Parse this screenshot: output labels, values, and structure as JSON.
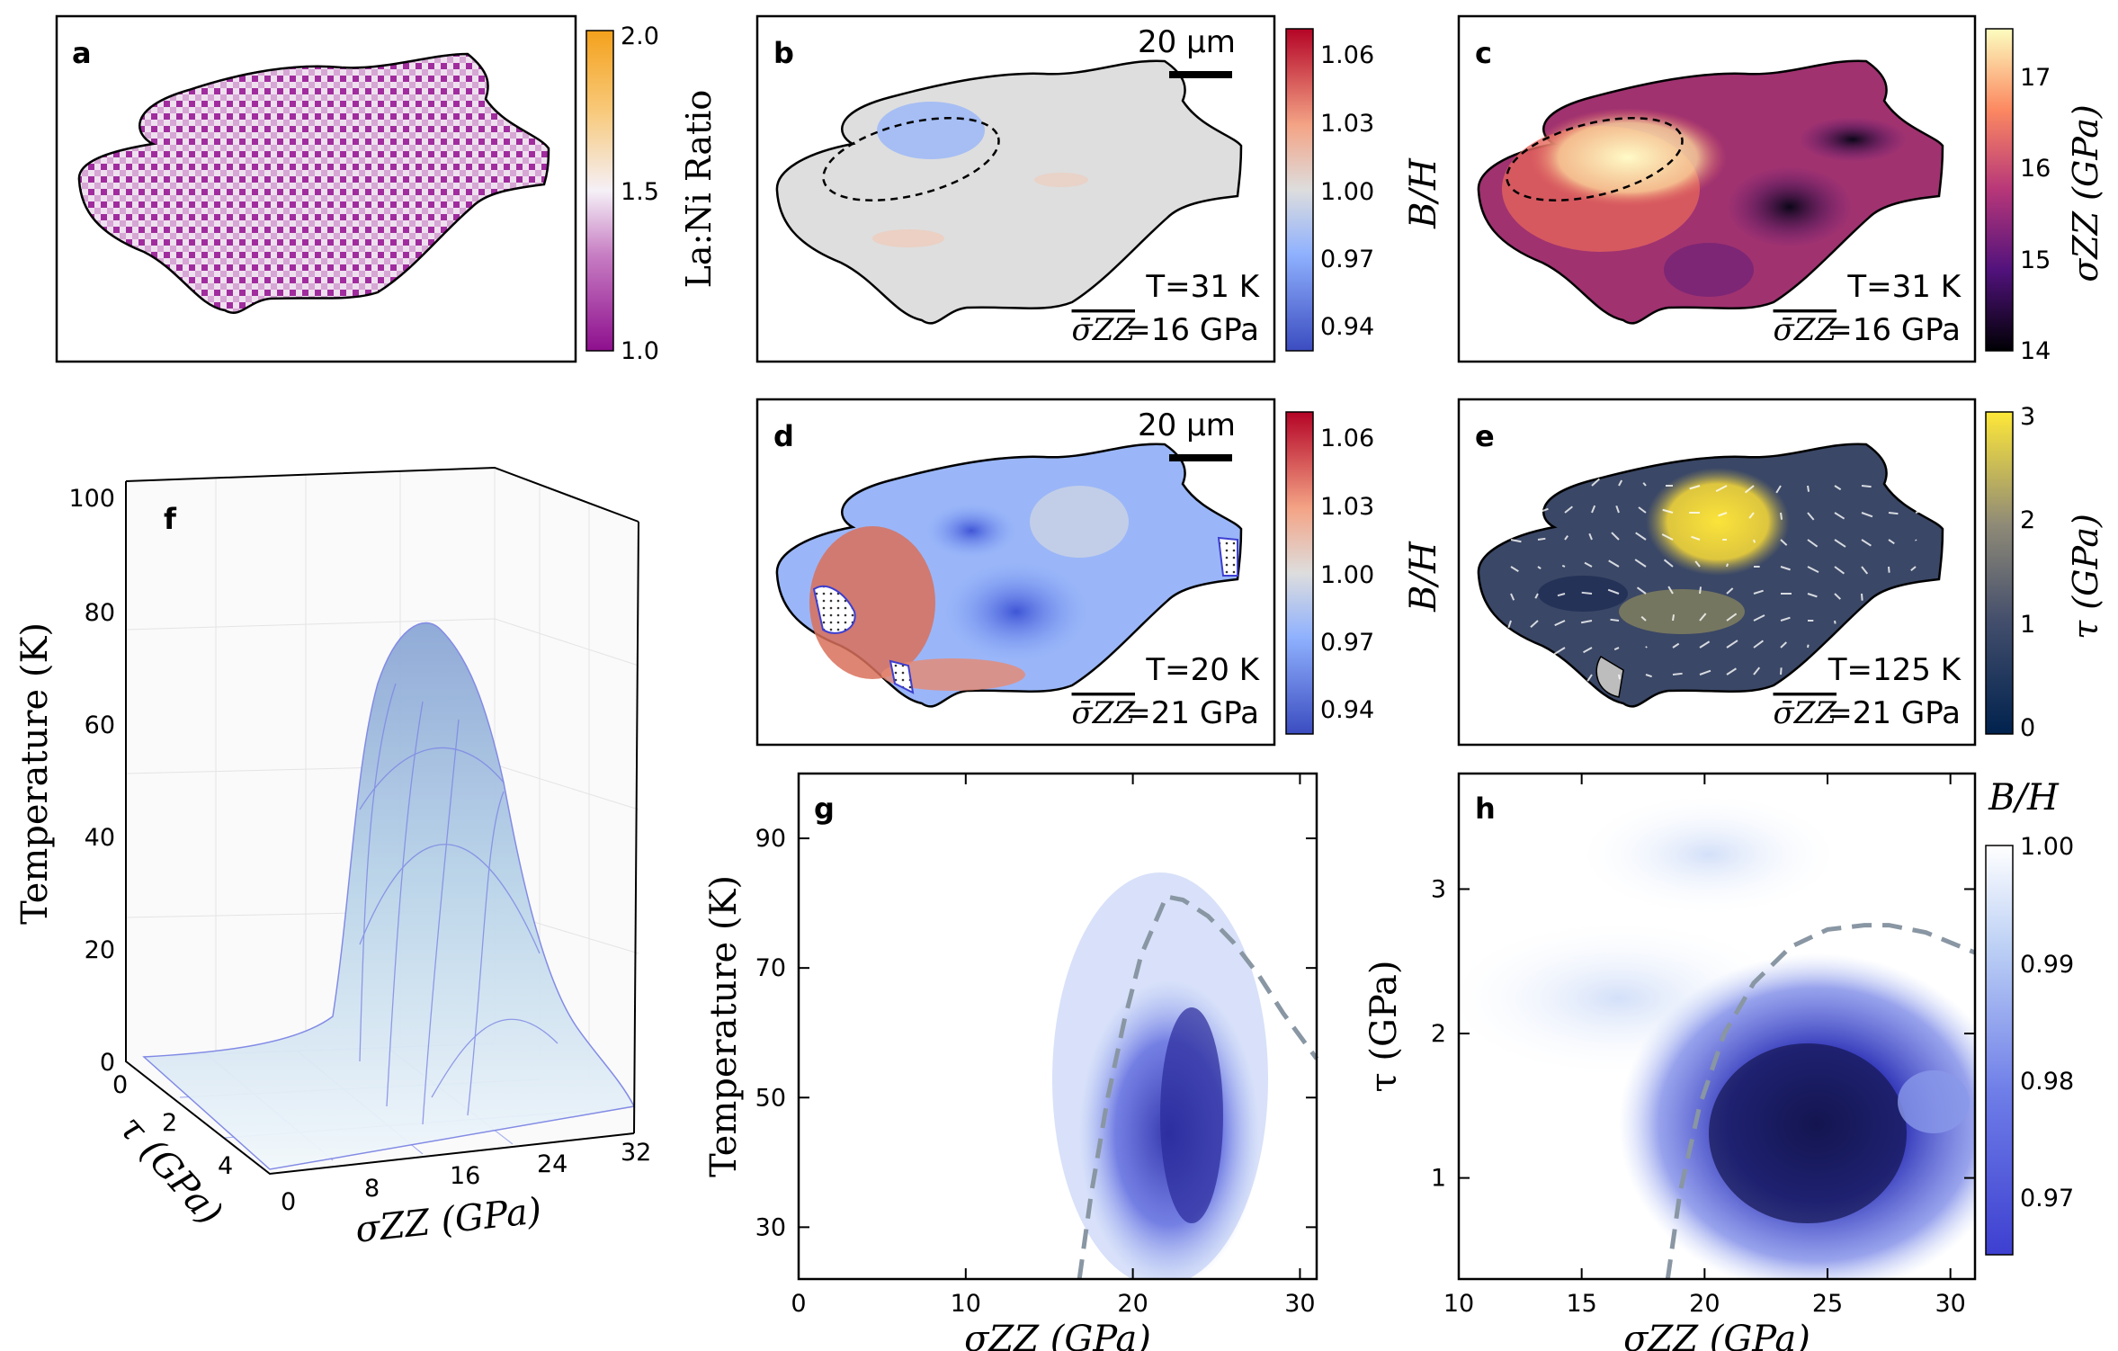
{
  "panels": {
    "a": {
      "letter": "a",
      "colorbar_label": "La:Ni Ratio",
      "ticks": [
        "2.0",
        "1.5",
        "1.0"
      ]
    },
    "b": {
      "letter": "b",
      "scalebar": "20 μm",
      "temp": "T=31 K",
      "sigma_label": "σ̄ZZ",
      "sigma_value": "=16 GPa"
    },
    "bd_colorbar": {
      "label": "B/H",
      "ticks": [
        "1.06",
        "1.03",
        "1.00",
        "0.97",
        "0.94"
      ]
    },
    "c": {
      "letter": "c",
      "temp": "T=31 K",
      "sigma_label": "σ̄ZZ",
      "sigma_value": "=16 GPa",
      "colorbar_label": "σZZ (GPa)",
      "ticks": [
        "17",
        "16",
        "15",
        "14"
      ]
    },
    "d": {
      "letter": "d",
      "scalebar": "20 μm",
      "temp": "T=20 K",
      "sigma_label": "σ̄ZZ",
      "sigma_value": "=21 GPa"
    },
    "e": {
      "letter": "e",
      "temp": "T=125 K",
      "sigma_label": "σ̄ZZ",
      "sigma_value": "=21 GPa",
      "colorbar_label": "τ (GPa)",
      "ticks": [
        "3",
        "2",
        "1",
        "0"
      ]
    },
    "f": {
      "letter": "f",
      "zlabel": "Temperature (K)",
      "xlabel": "σZZ (GPa)",
      "ylabel": "τ (GPa)",
      "zticks": [
        "100",
        "80",
        "60",
        "40",
        "20",
        "0"
      ],
      "xticks": [
        "0",
        "8",
        "16",
        "24",
        "32"
      ],
      "yticks": [
        "0",
        "2",
        "4"
      ]
    },
    "g": {
      "letter": "g"
    },
    "h": {
      "letter": "h",
      "colorbar_label": "B/H",
      "ticks": [
        "1.00",
        "0.99",
        "0.98",
        "0.97"
      ]
    }
  },
  "chart_data": [
    {
      "id": "g",
      "type": "heatmap",
      "title": "",
      "xlabel": "σZZ (GPa)",
      "ylabel": "Temperature (K)",
      "xlim": [
        0,
        31
      ],
      "ylim": [
        22,
        100
      ],
      "xticks": [
        0,
        10,
        20,
        30
      ],
      "yticks": [
        30,
        50,
        70,
        90
      ],
      "colorbar": "B/H",
      "boundary_dashed": {
        "x": [
          16.8,
          17.5,
          18.5,
          19.5,
          20.5,
          21.5,
          22.0,
          23.0,
          24.5,
          26.0,
          27.5,
          29.0,
          31.0
        ],
        "y": [
          22,
          35,
          50,
          62,
          72,
          78,
          81,
          80.5,
          78,
          74,
          69,
          63,
          56
        ]
      }
    },
    {
      "id": "h",
      "type": "heatmap",
      "title": "",
      "xlabel": "σZZ (GPa)",
      "ylabel": "τ (GPa)",
      "xlim": [
        10,
        31
      ],
      "ylim": [
        0.3,
        3.8
      ],
      "xticks": [
        10,
        15,
        20,
        25,
        30
      ],
      "yticks": [
        1,
        2,
        3
      ],
      "colorbar": "B/H",
      "crange": [
        0.965,
        1.0
      ],
      "boundary_dashed": {
        "x": [
          18.5,
          19.0,
          19.8,
          20.8,
          22.0,
          23.5,
          25.0,
          26.5,
          27.5,
          29.0,
          31.0
        ],
        "y": [
          0.3,
          0.9,
          1.5,
          2.0,
          2.35,
          2.6,
          2.72,
          2.75,
          2.75,
          2.7,
          2.56
        ]
      }
    },
    {
      "id": "f",
      "type": "surface",
      "xlabel": "σZZ (GPa)",
      "ylabel": "τ (GPa)",
      "zlabel": "Temperature (K)",
      "xlim": [
        0,
        32
      ],
      "ylim": [
        0,
        4
      ],
      "zlim": [
        0,
        100
      ],
      "peak": {
        "sigma": 22,
        "tau": 2.7,
        "T": 80
      }
    }
  ]
}
